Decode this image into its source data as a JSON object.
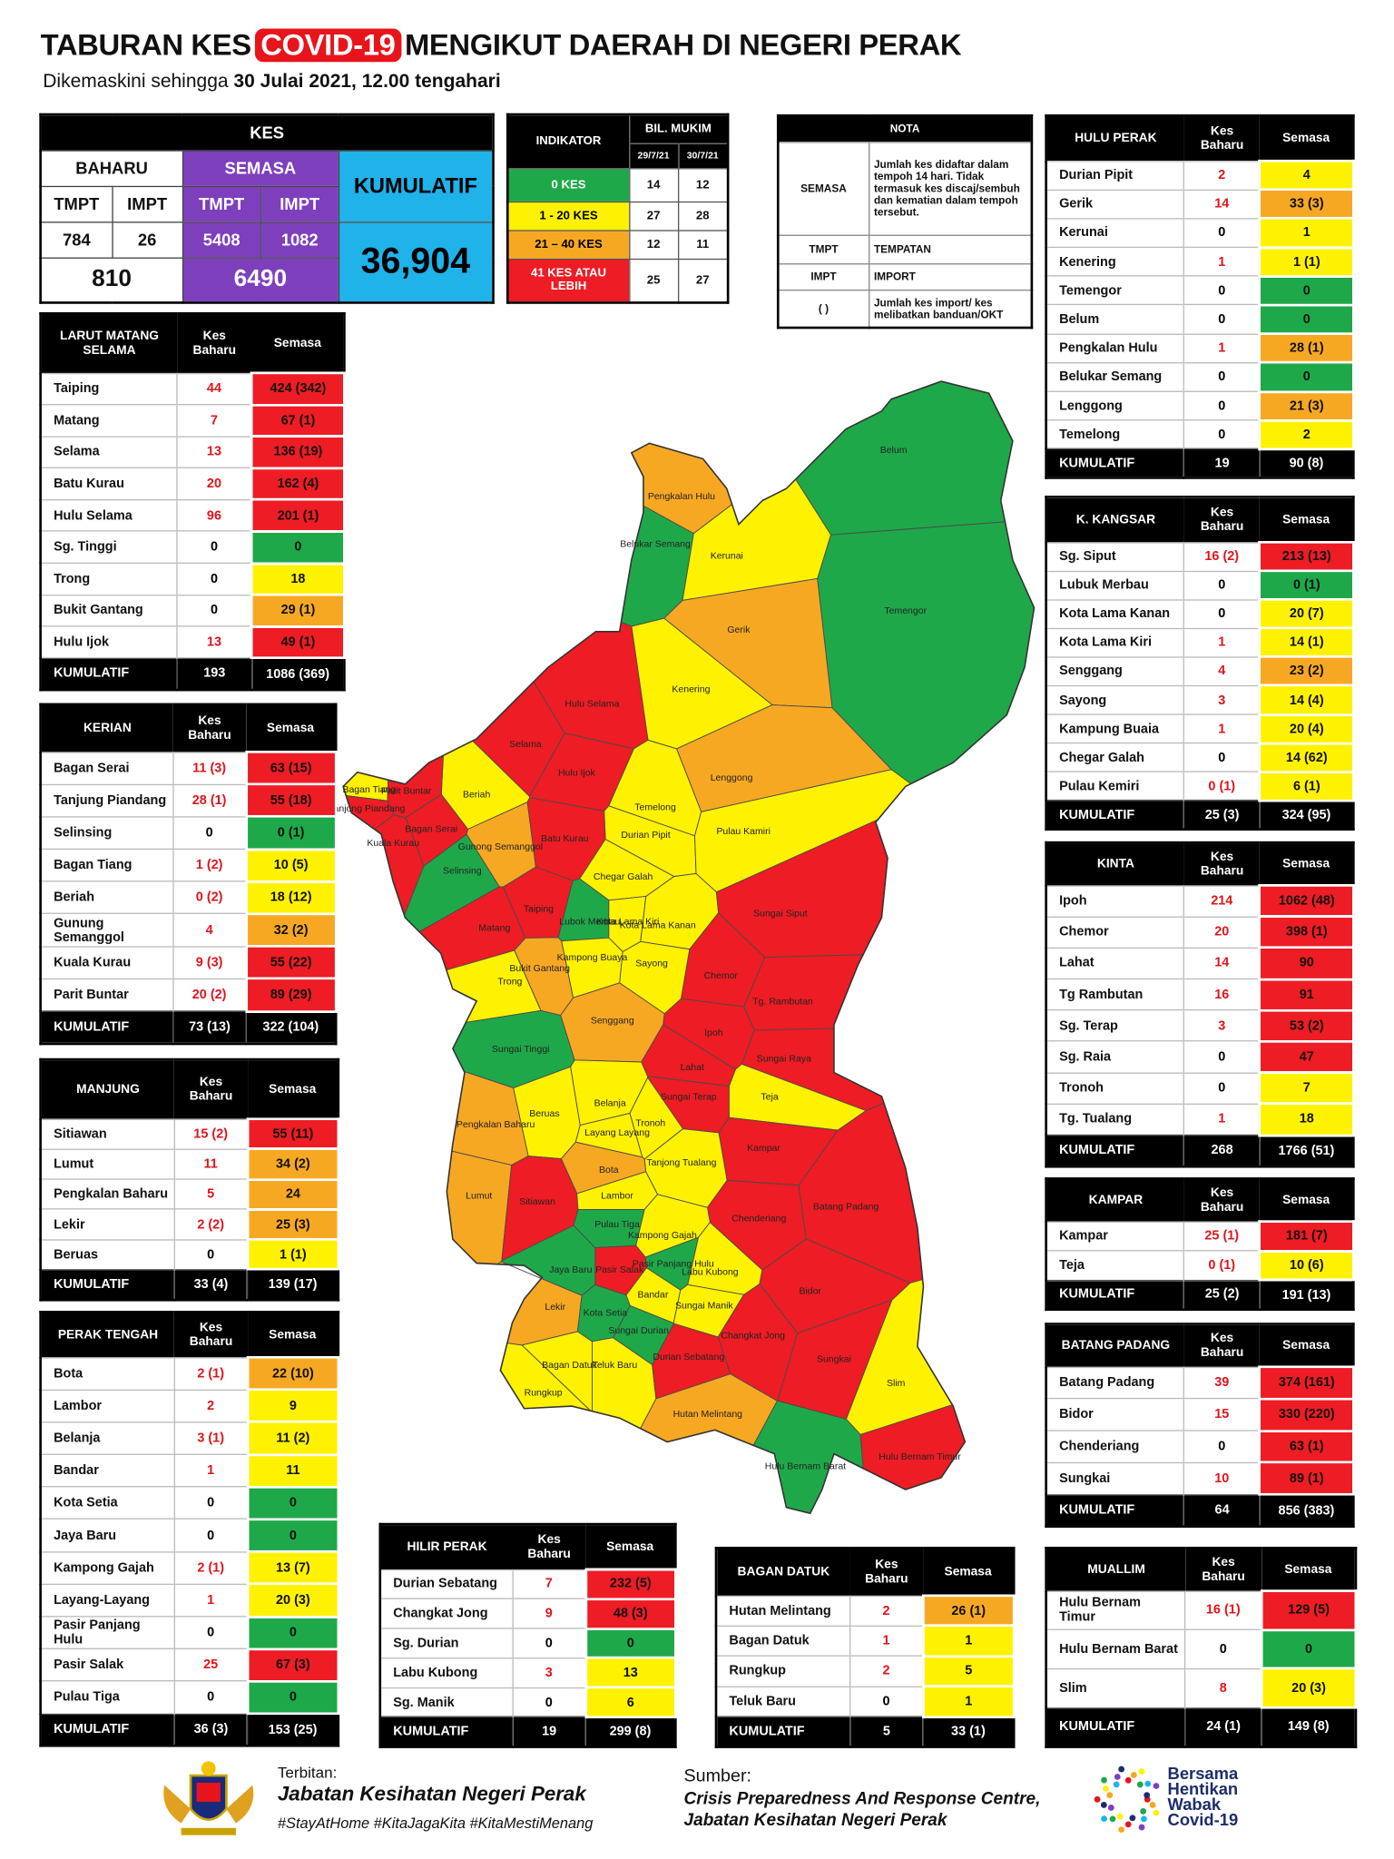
{
  "header": {
    "title": [
      "TABURAN KES",
      "COVID-19",
      "MENGIKUT DAERAH DI NEGERI PERAK"
    ],
    "subtitle": [
      "Dikemaskini sehingga",
      "30 Julai 2021, 12.00 tengahari"
    ]
  },
  "summary": {
    "title": "KES",
    "baharu": "BAHARU",
    "semasa": "SEMASA",
    "kumulatif": "KUMULATIF",
    "sub": [
      "TMPT",
      "IMPT",
      "TMPT",
      "IMPT"
    ],
    "values": [
      "784",
      "26",
      "5408",
      "1082"
    ],
    "baharu_total": "810",
    "semasa_total": "6490",
    "kumulatif_total": "36,904"
  },
  "indicator": {
    "title": "INDIKATOR",
    "group": "BIL. MUKIM",
    "dates": [
      "29/7/21",
      "30/7/21"
    ],
    "rows": [
      [
        "0 KES",
        "14",
        "12",
        "#1fa84a"
      ],
      [
        "1 - 20 KES",
        "27",
        "28",
        "#fff200"
      ],
      [
        "21 – 40 KES",
        "12",
        "11",
        "#f7a823"
      ],
      [
        "41 KES ATAU LEBIH",
        "25",
        "27",
        "#ee1c24"
      ]
    ]
  },
  "nota": {
    "title": "NOTA",
    "rows": [
      [
        "SEMASA",
        "Jumlah kes didaftar dalam tempoh 14 hari. Tidak termasuk kes discaj/sembuh dan kematian dalam tempoh tersebut."
      ],
      [
        "TMPT",
        "TEMPATAN"
      ],
      [
        "IMPT",
        "IMPORT"
      ],
      [
        "( )",
        "Jumlah kes import/ kes melibatkan banduan/OKT"
      ]
    ]
  },
  "district_columns": [
    "Kes Baharu",
    "Semasa"
  ],
  "districts": [
    {
      "name": "LARUT MATANG SELAMA",
      "rows": [
        [
          "Taiping",
          "44",
          "424 (342)",
          "#ee1c24"
        ],
        [
          "Matang",
          "7",
          "67 (1)",
          "#ee1c24"
        ],
        [
          "Selama",
          "13",
          "136 (19)",
          "#ee1c24"
        ],
        [
          "Batu Kurau",
          "20",
          "162 (4)",
          "#ee1c24"
        ],
        [
          "Hulu Selama",
          "96",
          "201 (1)",
          "#ee1c24"
        ],
        [
          "Sg. Tinggi",
          "0",
          "0",
          "#1fa84a"
        ],
        [
          "Trong",
          "0",
          "18",
          "#fff200"
        ],
        [
          "Bukit Gantang",
          "0",
          "29 (1)",
          "#f7a823"
        ],
        [
          "Hulu Ijok",
          "13",
          "49 (1)",
          "#ee1c24"
        ]
      ],
      "total": [
        "KUMULATIF",
        "193",
        "1086 (369)"
      ]
    },
    {
      "name": "KERIAN",
      "rows": [
        [
          "Bagan Serai",
          "11 (3)",
          "63 (15)",
          "#ee1c24"
        ],
        [
          "Tanjung Piandang",
          "28 (1)",
          "55 (18)",
          "#ee1c24"
        ],
        [
          "Selinsing",
          "0",
          "0 (1)",
          "#1fa84a"
        ],
        [
          "Bagan Tiang",
          "1 (2)",
          "10 (5)",
          "#fff200"
        ],
        [
          "Beriah",
          "0 (2)",
          "18 (12)",
          "#fff200"
        ],
        [
          "Gunung Semanggol",
          "4",
          "32 (2)",
          "#f7a823"
        ],
        [
          "Kuala Kurau",
          "9 (3)",
          "55 (22)",
          "#ee1c24"
        ],
        [
          "Parit Buntar",
          "20 (2)",
          "89 (29)",
          "#ee1c24"
        ]
      ],
      "total": [
        "KUMULATIF",
        "73 (13)",
        "322 (104)"
      ]
    },
    {
      "name": "MANJUNG",
      "rows": [
        [
          "Sitiawan",
          "15 (2)",
          "55 (11)",
          "#ee1c24"
        ],
        [
          "Lumut",
          "11",
          "34 (2)",
          "#f7a823"
        ],
        [
          "Pengkalan Baharu",
          "5",
          "24",
          "#f7a823"
        ],
        [
          "Lekir",
          "2 (2)",
          "25 (3)",
          "#f7a823"
        ],
        [
          "Beruas",
          "0",
          "1 (1)",
          "#fff200"
        ]
      ],
      "total": [
        "KUMULATIF",
        "33 (4)",
        "139 (17)"
      ]
    },
    {
      "name": "PERAK TENGAH",
      "rows": [
        [
          "Bota",
          "2 (1)",
          "22 (10)",
          "#f7a823"
        ],
        [
          "Lambor",
          "2",
          "9",
          "#fff200"
        ],
        [
          "Belanja",
          "3 (1)",
          "11 (2)",
          "#fff200"
        ],
        [
          "Bandar",
          "1",
          "11",
          "#fff200"
        ],
        [
          "Kota Setia",
          "0",
          "0",
          "#1fa84a"
        ],
        [
          "Jaya Baru",
          "0",
          "0",
          "#1fa84a"
        ],
        [
          "Kampong Gajah",
          "2 (1)",
          "13 (7)",
          "#fff200"
        ],
        [
          "Layang-Layang",
          "1",
          "20 (3)",
          "#fff200"
        ],
        [
          "Pasir Panjang Hulu",
          "0",
          "0",
          "#1fa84a"
        ],
        [
          "Pasir Salak",
          "25",
          "67 (3)",
          "#ee1c24"
        ],
        [
          "Pulau Tiga",
          "0",
          "0",
          "#1fa84a"
        ]
      ],
      "total": [
        "KUMULATIF",
        "36 (3)",
        "153 (25)"
      ]
    },
    {
      "name": "HILIR PERAK",
      "rows": [
        [
          "Durian Sebatang",
          "7",
          "232 (5)",
          "#ee1c24"
        ],
        [
          "Changkat Jong",
          "9",
          "48 (3)",
          "#ee1c24"
        ],
        [
          "Sg. Durian",
          "0",
          "0",
          "#1fa84a"
        ],
        [
          "Labu Kubong",
          "3",
          "13",
          "#fff200"
        ],
        [
          "Sg. Manik",
          "0",
          "6",
          "#fff200"
        ]
      ],
      "total": [
        "KUMULATIF",
        "19",
        "299 (8)"
      ]
    },
    {
      "name": "BAGAN DATUK",
      "rows": [
        [
          "Hutan Melintang",
          "2",
          "26 (1)",
          "#f7a823"
        ],
        [
          "Bagan Datuk",
          "1",
          "1",
          "#fff200"
        ],
        [
          "Rungkup",
          "2",
          "5",
          "#fff200"
        ],
        [
          "Teluk Baru",
          "0",
          "1",
          "#fff200"
        ]
      ],
      "total": [
        "KUMULATIF",
        "5",
        "33 (1)"
      ]
    },
    {
      "name": "HULU PERAK",
      "rows": [
        [
          "Durian Pipit",
          "2",
          "4",
          "#fff200"
        ],
        [
          "Gerik",
          "14",
          "33 (3)",
          "#f7a823"
        ],
        [
          "Kerunai",
          "0",
          "1",
          "#fff200"
        ],
        [
          "Kenering",
          "1",
          "1 (1)",
          "#fff200"
        ],
        [
          "Temengor",
          "0",
          "0",
          "#1fa84a"
        ],
        [
          "Belum",
          "0",
          "0",
          "#1fa84a"
        ],
        [
          "Pengkalan Hulu",
          "1",
          "28 (1)",
          "#f7a823"
        ],
        [
          "Belukar Semang",
          "0",
          "0",
          "#1fa84a"
        ],
        [
          "Lenggong",
          "0",
          "21 (3)",
          "#f7a823"
        ],
        [
          "Temelong",
          "0",
          "2",
          "#fff200"
        ]
      ],
      "total": [
        "KUMULATIF",
        "19",
        "90 (8)"
      ]
    },
    {
      "name": "K. KANGSAR",
      "rows": [
        [
          "Sg. Siput",
          "16 (2)",
          "213 (13)",
          "#ee1c24"
        ],
        [
          "Lubuk Merbau",
          "0",
          "0 (1)",
          "#1fa84a"
        ],
        [
          "Kota Lama Kanan",
          "0",
          "20 (7)",
          "#fff200"
        ],
        [
          "Kota Lama Kiri",
          "1",
          "14 (1)",
          "#fff200"
        ],
        [
          "Senggang",
          "4",
          "23 (2)",
          "#f7a823"
        ],
        [
          "Sayong",
          "3",
          "14 (4)",
          "#fff200"
        ],
        [
          "Kampung Buaia",
          "1",
          "20 (4)",
          "#fff200"
        ],
        [
          "Chegar Galah",
          "0",
          "14 (62)",
          "#fff200"
        ],
        [
          "Pulau Kemiri",
          "0 (1)",
          "6 (1)",
          "#fff200"
        ]
      ],
      "total": [
        "KUMULATIF",
        "25 (3)",
        "324 (95)"
      ]
    },
    {
      "name": "KINTA",
      "rows": [
        [
          "Ipoh",
          "214",
          "1062 (48)",
          "#ee1c24"
        ],
        [
          "Chemor",
          "20",
          "398 (1)",
          "#ee1c24"
        ],
        [
          "Lahat",
          "14",
          "90",
          "#ee1c24"
        ],
        [
          "Tg Rambutan",
          "16",
          "91",
          "#ee1c24"
        ],
        [
          "Sg. Terap",
          "3",
          "53 (2)",
          "#ee1c24"
        ],
        [
          "Sg. Raia",
          "0",
          "47",
          "#ee1c24"
        ],
        [
          "Tronoh",
          "0",
          "7",
          "#fff200"
        ],
        [
          "Tg. Tualang",
          "1",
          "18",
          "#fff200"
        ]
      ],
      "total": [
        "KUMULATIF",
        "268",
        "1766 (51)"
      ]
    },
    {
      "name": "KAMPAR",
      "rows": [
        [
          "Kampar",
          "25 (1)",
          "181 (7)",
          "#ee1c24"
        ],
        [
          "Teja",
          "0 (1)",
          "10 (6)",
          "#fff200"
        ]
      ],
      "total": [
        "KUMULATIF",
        "25 (2)",
        "191 (13)"
      ]
    },
    {
      "name": "BATANG PADANG",
      "rows": [
        [
          "Batang Padang",
          "39",
          "374 (161)",
          "#ee1c24"
        ],
        [
          "Bidor",
          "15",
          "330 (220)",
          "#ee1c24"
        ],
        [
          "Chenderiang",
          "0",
          "63 (1)",
          "#ee1c24"
        ],
        [
          "Sungkai",
          "10",
          "89 (1)",
          "#ee1c24"
        ]
      ],
      "total": [
        "KUMULATIF",
        "64",
        "856 (383)"
      ]
    },
    {
      "name": "MUALLIM",
      "rows": [
        [
          "Hulu Bernam Timur",
          "16 (1)",
          "129 (5)",
          "#ee1c24"
        ],
        [
          "Hulu Bernam Barat",
          "0",
          "0",
          "#1fa84a"
        ],
        [
          "Slim",
          "8",
          "20 (3)",
          "#fff200"
        ]
      ],
      "total": [
        "KUMULATIF",
        "24 (1)",
        "149 (8)"
      ]
    }
  ],
  "map": {
    "regions": [
      {
        "label": "Belum",
        "color": "#1fa84a"
      },
      {
        "label": "Temengor",
        "color": "#1fa84a"
      },
      {
        "label": "Pengkalan Hulu",
        "color": "#f7a823"
      },
      {
        "label": "Belukar Semang",
        "color": "#1fa84a"
      },
      {
        "label": "Kerunai",
        "color": "#fff200"
      },
      {
        "label": "Gerik",
        "color": "#f7a823"
      },
      {
        "label": "Kenering",
        "color": "#fff200"
      },
      {
        "label": "Hulu Selama",
        "color": "#ee1c24"
      },
      {
        "label": "Selama",
        "color": "#ee1c24"
      },
      {
        "label": "Hulu Ijok",
        "color": "#ee1c24"
      },
      {
        "label": "Lenggong",
        "color": "#f7a823"
      },
      {
        "label": "Temelong",
        "color": "#fff200"
      },
      {
        "label": "Durian Pipit",
        "color": "#fff200"
      },
      {
        "label": "Pulau Kamiri",
        "color": "#fff200"
      },
      {
        "label": "Beriah",
        "color": "#fff200"
      },
      {
        "label": "Bagan Tiang",
        "color": "#fff200"
      },
      {
        "label": "Parit Buntar",
        "color": "#ee1c24"
      },
      {
        "label": "Tanjong Piandang",
        "color": "#ee1c24"
      },
      {
        "label": "Bagan Serai",
        "color": "#ee1c24"
      },
      {
        "label": "Kuala Kurau",
        "color": "#ee1c24"
      },
      {
        "label": "Gunong Semanggol",
        "color": "#f7a823"
      },
      {
        "label": "Selinsing",
        "color": "#1fa84a"
      },
      {
        "label": "Batu Kurau",
        "color": "#ee1c24"
      },
      {
        "label": "Chegar Galah",
        "color": "#fff200"
      },
      {
        "label": "Taiping",
        "color": "#ee1c24"
      },
      {
        "label": "Lubok Merbau",
        "color": "#1fa84a"
      },
      {
        "label": "Kota Lama Kiri",
        "color": "#fff200"
      },
      {
        "label": "Kota Lama Kanan",
        "color": "#fff200"
      },
      {
        "label": "Sungai Siput",
        "color": "#ee1c24"
      },
      {
        "label": "Matang",
        "color": "#ee1c24"
      },
      {
        "label": "Bukit Gantang",
        "color": "#f7a823"
      },
      {
        "label": "Kampong Buaya",
        "color": "#fff200"
      },
      {
        "label": "Sayong",
        "color": "#fff200"
      },
      {
        "label": "Trong",
        "color": "#fff200"
      },
      {
        "label": "Chemor",
        "color": "#ee1c24"
      },
      {
        "label": "Tg. Rambutan",
        "color": "#ee1c24"
      },
      {
        "label": "Senggang",
        "color": "#f7a823"
      },
      {
        "label": "Sungai Tinggi",
        "color": "#1fa84a"
      },
      {
        "label": "Ipoh",
        "color": "#ee1c24"
      },
      {
        "label": "Sungai Raya",
        "color": "#ee1c24"
      },
      {
        "label": "Lahat",
        "color": "#ee1c24"
      },
      {
        "label": "Sungai Terap",
        "color": "#ee1c24"
      },
      {
        "label": "Teja",
        "color": "#fff200"
      },
      {
        "label": "Pengkalan Baharu",
        "color": "#f7a823"
      },
      {
        "label": "Beruas",
        "color": "#fff200"
      },
      {
        "label": "Belanja",
        "color": "#fff200"
      },
      {
        "label": "Layang Layang",
        "color": "#fff200"
      },
      {
        "label": "Tronoh",
        "color": "#fff200"
      },
      {
        "label": "Kampar",
        "color": "#ee1c24"
      },
      {
        "label": "Tanjong Tualang",
        "color": "#fff200"
      },
      {
        "label": "Bota",
        "color": "#f7a823"
      },
      {
        "label": "Lumut",
        "color": "#f7a823"
      },
      {
        "label": "Sitiawan",
        "color": "#ee1c24"
      },
      {
        "label": "Lambor",
        "color": "#fff200"
      },
      {
        "label": "Chenderiang",
        "color": "#ee1c24"
      },
      {
        "label": "Batang Padang",
        "color": "#ee1c24"
      },
      {
        "label": "Pulau Tiga",
        "color": "#1fa84a"
      },
      {
        "label": "Kampong Gajah",
        "color": "#fff200"
      },
      {
        "label": "Pasir Panjang Hulu",
        "color": "#1fa84a"
      },
      {
        "label": "Pasir Salak",
        "color": "#ee1c24"
      },
      {
        "label": "Labu Kubong",
        "color": "#fff200"
      },
      {
        "label": "Jaya Baru",
        "color": "#1fa84a"
      },
      {
        "label": "Bandar",
        "color": "#fff200"
      },
      {
        "label": "Bidor",
        "color": "#ee1c24"
      },
      {
        "label": "Sungai Manik",
        "color": "#fff200"
      },
      {
        "label": "Lekir",
        "color": "#f7a823"
      },
      {
        "label": "Kota Setia",
        "color": "#1fa84a"
      },
      {
        "label": "Sungai Durian",
        "color": "#1fa84a"
      },
      {
        "label": "Changkat Jong",
        "color": "#ee1c24"
      },
      {
        "label": "Sungkai",
        "color": "#ee1c24"
      },
      {
        "label": "Bagan Datuk",
        "color": "#fff200"
      },
      {
        "label": "Teluk Baru",
        "color": "#fff200"
      },
      {
        "label": "Durian Sebatang",
        "color": "#ee1c24"
      },
      {
        "label": "Rungkup",
        "color": "#fff200"
      },
      {
        "label": "Slim",
        "color": "#fff200"
      },
      {
        "label": "Hutan Melintang",
        "color": "#f7a823"
      },
      {
        "label": "Hulu Bernam Barat",
        "color": "#1fa84a"
      },
      {
        "label": "Hulu Bernam Timur",
        "color": "#ee1c24"
      }
    ]
  },
  "footer": {
    "publisher_label": "Terbitan:",
    "publisher": "Jabatan Kesihatan Negeri Perak",
    "hashtags": "#StayAtHome #KitaJagaKita #KitaMestiMenang",
    "source_label": "Sumber:",
    "source": [
      "Crisis Preparedness And Response Centre,",
      "Jabatan Kesihatan Negeri Perak"
    ],
    "logo_text": [
      "Bersama",
      "Hentikan",
      "Wabak",
      "Covid-19"
    ]
  }
}
